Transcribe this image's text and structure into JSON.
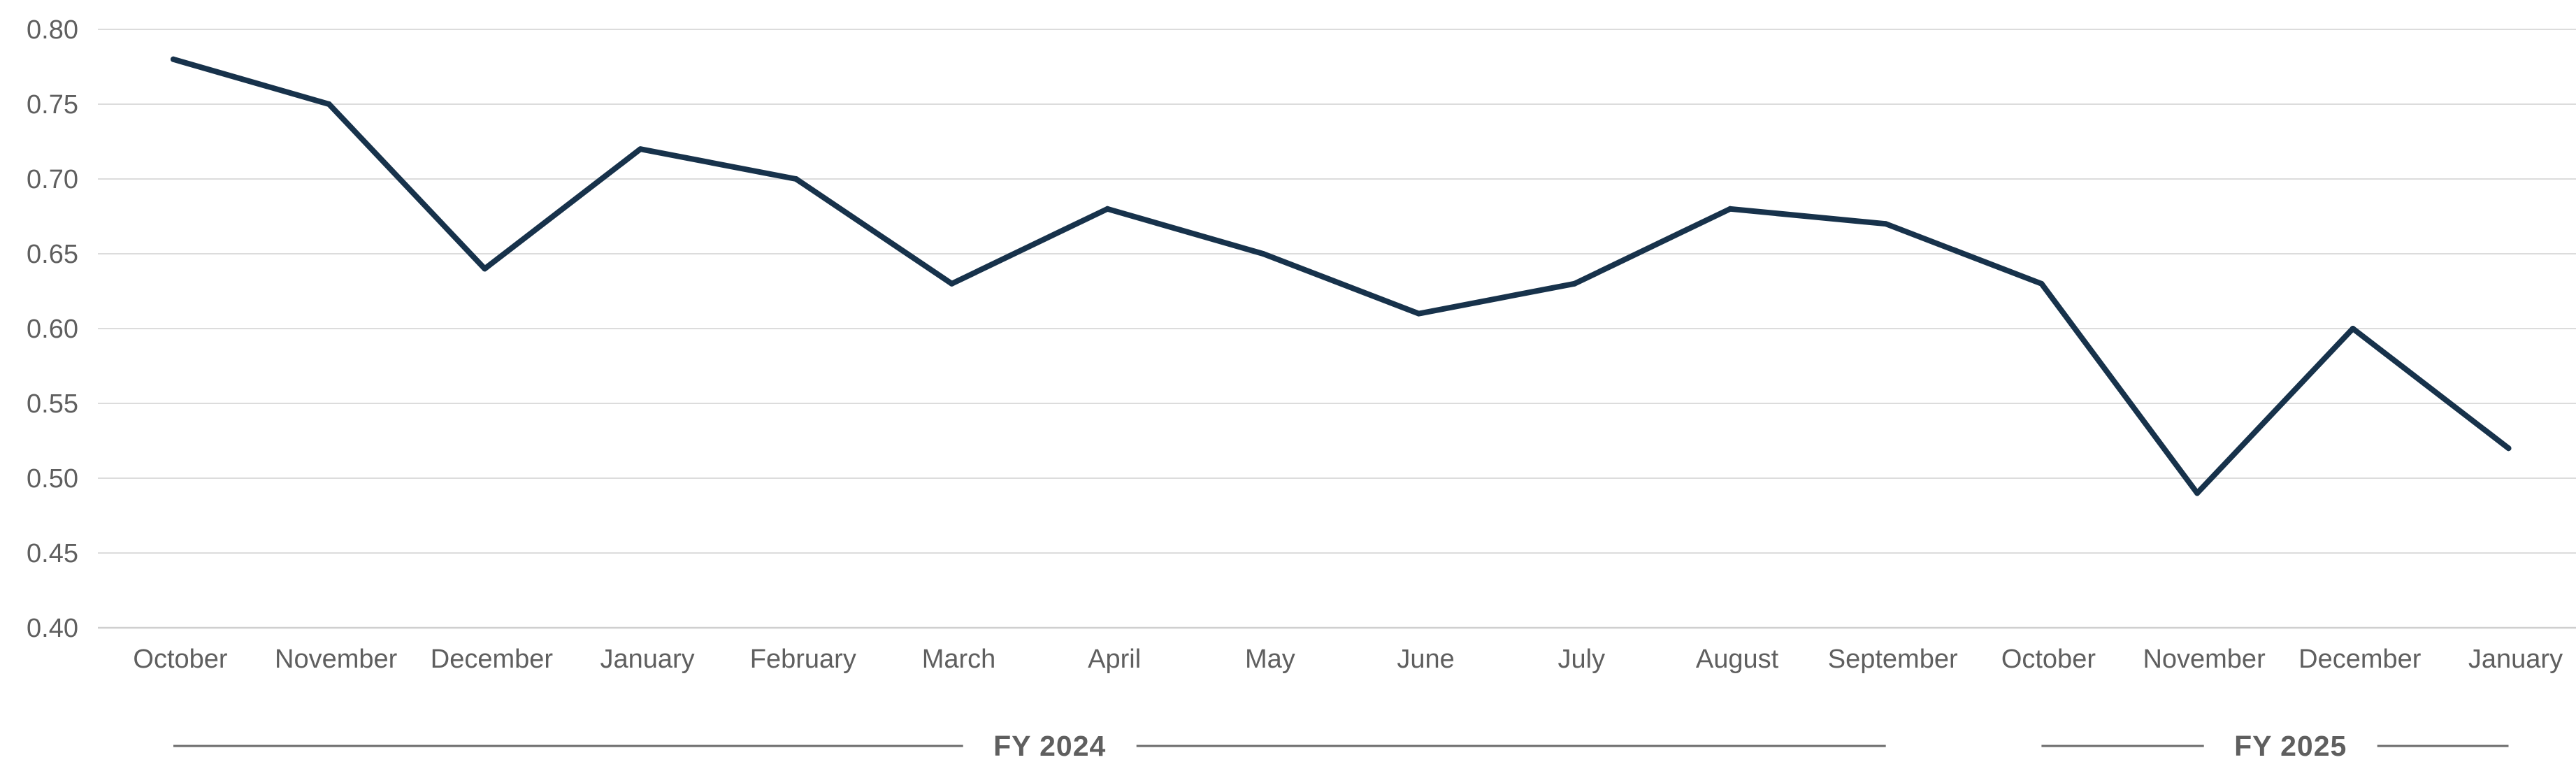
{
  "chart_data": {
    "type": "line",
    "categories": [
      "October",
      "November",
      "December",
      "January",
      "February",
      "March",
      "April",
      "May",
      "June",
      "July",
      "August",
      "September",
      "October",
      "November",
      "December",
      "January"
    ],
    "series": [
      {
        "values": [
          0.78,
          0.75,
          0.64,
          0.72,
          0.7,
          0.63,
          0.68,
          0.65,
          0.61,
          0.63,
          0.68,
          0.67,
          0.63,
          0.49,
          0.6,
          0.52
        ]
      }
    ],
    "yticks": [
      "0.40",
      "0.45",
      "0.50",
      "0.55",
      "0.60",
      "0.65",
      "0.70",
      "0.75",
      "0.80"
    ],
    "ylim": [
      0.4,
      0.8
    ],
    "groups": [
      {
        "label": "FY 2024",
        "start": 0,
        "end": 11
      },
      {
        "label": "FY 2025",
        "start": 12,
        "end": 15
      }
    ],
    "grid": true,
    "line_color": "#17324b"
  }
}
